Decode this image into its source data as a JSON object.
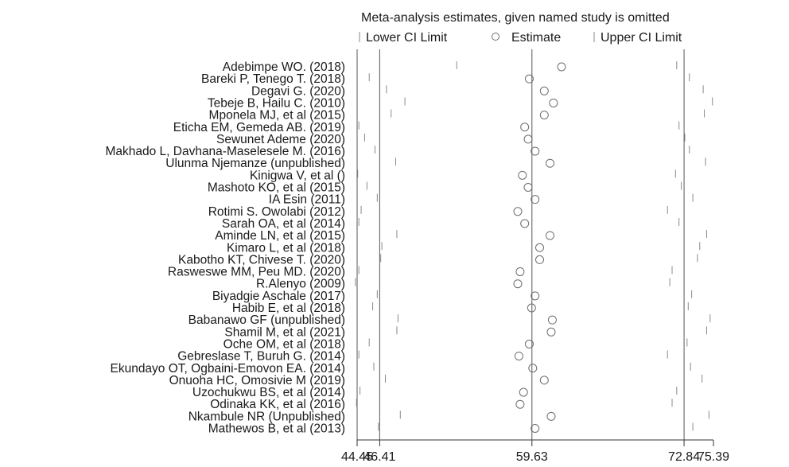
{
  "chart_data": {
    "type": "scatter",
    "title": "Meta-analysis estimates, given named study is omitted",
    "legend": {
      "placement": "top",
      "items": [
        {
          "key": "lower",
          "label": "Lower CI Limit",
          "marker": "tick"
        },
        {
          "key": "est",
          "label": "Estimate",
          "marker": "circle"
        },
        {
          "key": "upper",
          "label": "Upper CI Limit",
          "marker": "tick"
        }
      ]
    },
    "x_ticks": [
      {
        "value": 44.45,
        "label": "44.45"
      },
      {
        "value": 46.41,
        "label": "46.41"
      },
      {
        "value": 59.63,
        "label": "59.63"
      },
      {
        "value": 72.84,
        "label": "72.84"
      },
      {
        "value": 75.39,
        "label": "75.39"
      }
    ],
    "xlim": [
      44.45,
      75.39
    ],
    "reference_lines": [
      46.41,
      59.63,
      72.84
    ],
    "studies": [
      {
        "name": "Adebimpe WO. (2018)",
        "lower": 53.1,
        "estimate": 62.2,
        "upper": 72.2
      },
      {
        "name": "Bareki P, Tenego T. (2018)",
        "lower": 45.5,
        "estimate": 59.4,
        "upper": 73.3
      },
      {
        "name": "Degavi G. (2020)",
        "lower": 47.0,
        "estimate": 60.7,
        "upper": 74.5
      },
      {
        "name": "Tebeje B, Hailu C.  (2010)",
        "lower": 48.6,
        "estimate": 61.5,
        "upper": 75.3
      },
      {
        "name": "Mponela MJ, et al (2015)",
        "lower": 47.4,
        "estimate": 60.7,
        "upper": 74.6
      },
      {
        "name": "Eticha EM, Gemeda AB.  (2019)",
        "lower": 44.6,
        "estimate": 59.0,
        "upper": 72.4
      },
      {
        "name": "Sewunet Ademe (2020)",
        "lower": 45.1,
        "estimate": 59.3,
        "upper": 72.9
      },
      {
        "name": "Makhado L, Davhana-Maselesele M.  (2016)",
        "lower": 46.0,
        "estimate": 59.9,
        "upper": 73.3
      },
      {
        "name": "Ulunma Njemanze (unpublished)",
        "lower": 47.8,
        "estimate": 61.2,
        "upper": 74.7
      },
      {
        "name": "Kinigwa V, et al ()",
        "lower": 44.5,
        "estimate": 58.8,
        "upper": 72.1
      },
      {
        "name": "Mashoto KO, et al (2015)",
        "lower": 45.3,
        "estimate": 59.3,
        "upper": 72.6
      },
      {
        "name": "IA Esin (2011)",
        "lower": 46.2,
        "estimate": 59.9,
        "upper": 73.6
      },
      {
        "name": "Rotimi S. Owolabi (2012)",
        "lower": 44.8,
        "estimate": 58.4,
        "upper": 71.4
      },
      {
        "name": "Sarah OA, et al (2014)",
        "lower": 44.6,
        "estimate": 59.0,
        "upper": 72.4
      },
      {
        "name": "Aminde LN, et al (2015)",
        "lower": 47.9,
        "estimate": 61.2,
        "upper": 74.8
      },
      {
        "name": "Kimaro L, et al (2018)",
        "lower": 46.6,
        "estimate": 60.3,
        "upper": 74.2
      },
      {
        "name": "Kabotho KT, Chivese T.  (2020)",
        "lower": 46.5,
        "estimate": 60.3,
        "upper": 74.0
      },
      {
        "name": "Rasweswe MM, Peu MD.  (2020)",
        "lower": 44.6,
        "estimate": 58.6,
        "upper": 71.8
      },
      {
        "name": "R.Alenyo (2009)",
        "lower": 44.3,
        "estimate": 58.4,
        "upper": 71.6
      },
      {
        "name": "Biyadgie Aschale (2017)",
        "lower": 46.2,
        "estimate": 59.9,
        "upper": 73.5
      },
      {
        "name": "Habib E, et al (2018)",
        "lower": 45.8,
        "estimate": 59.6,
        "upper": 73.2
      },
      {
        "name": "Babanawo GF (unpublished)",
        "lower": 48.0,
        "estimate": 61.4,
        "upper": 75.1
      },
      {
        "name": "Shamil M, et al (2021)",
        "lower": 47.9,
        "estimate": 61.3,
        "upper": 74.8
      },
      {
        "name": "Oche OM, et al (2018)",
        "lower": 45.5,
        "estimate": 59.4,
        "upper": 73.1
      },
      {
        "name": "Gebreslase T, Buruh G.  (2014)",
        "lower": 44.6,
        "estimate": 58.5,
        "upper": 71.4
      },
      {
        "name": "Ekundayo OT, Ogbaini-Emovon EA.  (2014)",
        "lower": 45.9,
        "estimate": 59.7,
        "upper": 73.4
      },
      {
        "name": "Onuoha HC, Omosivie M (2019)",
        "lower": 46.9,
        "estimate": 60.7,
        "upper": 74.4
      },
      {
        "name": "Uzochukwu BS, et al (2014)",
        "lower": 44.7,
        "estimate": 58.9,
        "upper": 72.2
      },
      {
        "name": "Odinaka KK, et al (2016)",
        "lower": 44.4,
        "estimate": 58.6,
        "upper": 71.8
      },
      {
        "name": "Nkambule NR (Unpublished)",
        "lower": 48.2,
        "estimate": 61.3,
        "upper": 75.0
      },
      {
        "name": "Mathewos B, et al (2013)",
        "lower": 46.3,
        "estimate": 59.9,
        "upper": 73.6
      }
    ]
  }
}
